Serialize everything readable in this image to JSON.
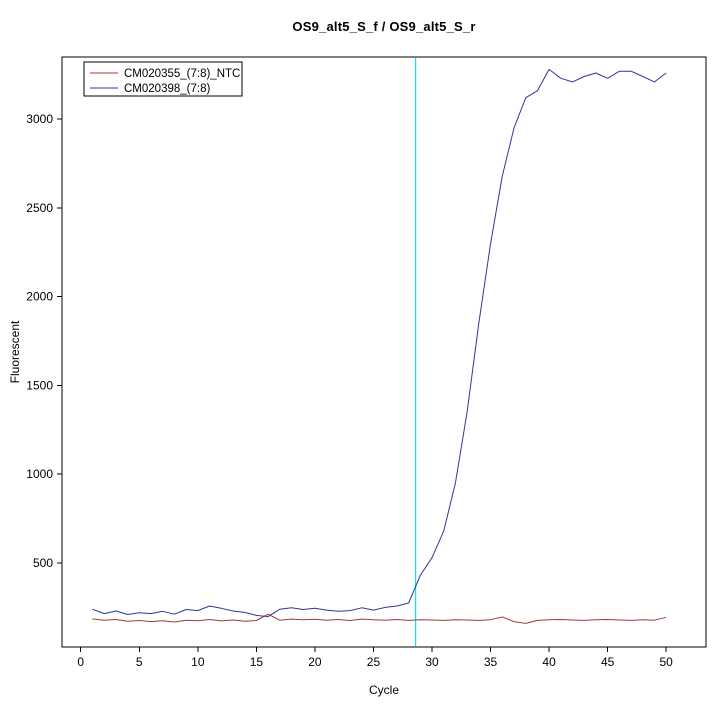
{
  "chart": {
    "title": "OS9_alt5_S_f / OS9_alt5_S_r",
    "xlabel": "Cycle",
    "ylabel": "Fluorescent",
    "x_ticks": [
      0,
      5,
      10,
      15,
      20,
      25,
      30,
      35,
      40,
      45,
      50
    ],
    "y_ticks": [
      500,
      1000,
      1500,
      2000,
      2500,
      3000
    ],
    "axis_color": "#000000",
    "background": "#ffffff"
  },
  "chart_data": {
    "type": "line",
    "title": "OS9_alt5_S_f / OS9_alt5_S_r",
    "xlabel": "Cycle",
    "ylabel": "Fluorescent",
    "xlim": [
      -1.6,
      53.4
    ],
    "ylim": [
      27,
      3350
    ],
    "grid": false,
    "legend_position": "top-left",
    "x": [
      1,
      2,
      3,
      4,
      5,
      6,
      7,
      8,
      9,
      10,
      11,
      12,
      13,
      14,
      15,
      16,
      17,
      18,
      19,
      20,
      21,
      22,
      23,
      24,
      25,
      26,
      27,
      28,
      29,
      30,
      31,
      32,
      33,
      34,
      35,
      36,
      37,
      38,
      39,
      40,
      41,
      42,
      43,
      44,
      45,
      46,
      47,
      48,
      49,
      50
    ],
    "series": [
      {
        "name": "CM020355_(7:8)_NTC",
        "color": "#a03a3a",
        "values": [
          185,
          178,
          182,
          172,
          176,
          170,
          175,
          168,
          178,
          175,
          182,
          174,
          179,
          172,
          176,
          212,
          178,
          184,
          180,
          183,
          178,
          182,
          176,
          184,
          180,
          178,
          182,
          177,
          181,
          179,
          177,
          181,
          179,
          177,
          181,
          196,
          170,
          160,
          177,
          180,
          182,
          179,
          177,
          180,
          182,
          179,
          177,
          180,
          178,
          194
        ]
      },
      {
        "name": "CM020398_(7:8)",
        "color": "#34349b",
        "values": [
          240,
          215,
          230,
          210,
          220,
          215,
          228,
          212,
          238,
          232,
          258,
          245,
          230,
          222,
          205,
          198,
          240,
          248,
          238,
          245,
          235,
          228,
          232,
          248,
          235,
          250,
          258,
          275,
          430,
          530,
          680,
          950,
          1350,
          1850,
          2300,
          2680,
          2950,
          3120,
          3160,
          3280,
          3230,
          3210,
          3240,
          3260,
          3230,
          3270,
          3270,
          3240,
          3210,
          3260
        ]
      }
    ],
    "threshold_line": {
      "x": 28.6,
      "color": "#00e8ee"
    }
  }
}
